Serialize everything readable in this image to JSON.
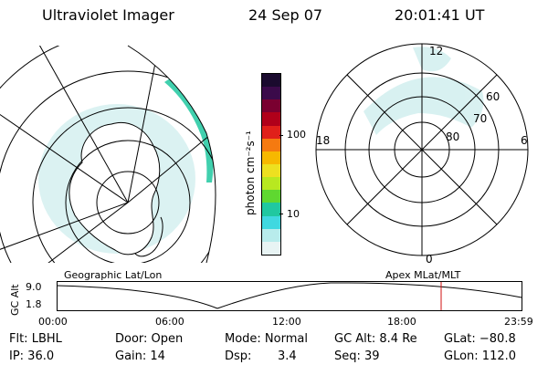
{
  "header": {
    "instrument": "Ultraviolet Imager",
    "date": "24 Sep 07",
    "time": "20:01:41 UT"
  },
  "colorbar": {
    "unit_label": "photon cm⁻²s⁻¹",
    "ticks": [
      "100",
      "10"
    ],
    "colors": [
      "#1a0a2e",
      "#3b0a4a",
      "#7a0030",
      "#b0001a",
      "#e0201a",
      "#f57a10",
      "#f7b800",
      "#ede020",
      "#b8e820",
      "#5fd830",
      "#20c8a0",
      "#40d8e0",
      "#b8ecec",
      "#e8f4f4"
    ]
  },
  "geo_map": {
    "caption": "Geographic Lat/Lon"
  },
  "polar_plot": {
    "caption": "Apex MLat/MLT",
    "mlt_labels": {
      "top": "12",
      "left": "18",
      "right": "6",
      "bottom": "0"
    },
    "lat_labels": [
      "60",
      "70",
      "80"
    ]
  },
  "orbit_panel": {
    "ylabel": "GC Alt",
    "y_ticks": [
      "9.0",
      "1.8"
    ],
    "x_ticks": [
      "00:00",
      "06:00",
      "12:00",
      "18:00",
      "23:59"
    ],
    "current_time_marker": "20:01:41",
    "marker_color": "#d01010"
  },
  "status": {
    "filter": "Flt: LBHL",
    "ip": "IP: 36.0",
    "door": "Door: Open",
    "gain": "Gain: 14",
    "mode": "Mode: Normal",
    "dsp_label": "Dsp:",
    "dsp_value": "3.4",
    "gc_alt": "GC Alt: 8.4 Re",
    "seq": "Seq: 39",
    "glat": "GLat: −80.8",
    "glon": "GLon: 112.0"
  }
}
